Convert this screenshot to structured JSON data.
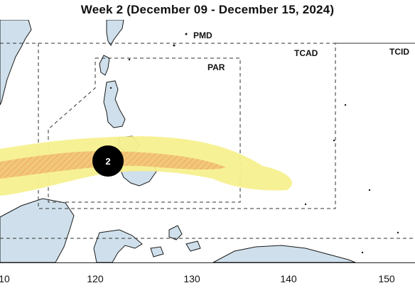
{
  "title": "Week 2 (December 09 - December 15, 2024)",
  "areas": {
    "pmd": "PMD",
    "par": "PAR",
    "tcad": "TCAD",
    "tcid": "TCID"
  },
  "storm_marker": {
    "label": "2"
  },
  "forecast_track": {
    "fill_color": "#f7f08f",
    "core_color": "#f1c47a"
  },
  "colors": {
    "land": "#cfe0ec",
    "coast": "#1a1a1a",
    "boundary": "#333333"
  },
  "longitude_ticks": [
    "10",
    "120",
    "130",
    "140",
    "150"
  ]
}
